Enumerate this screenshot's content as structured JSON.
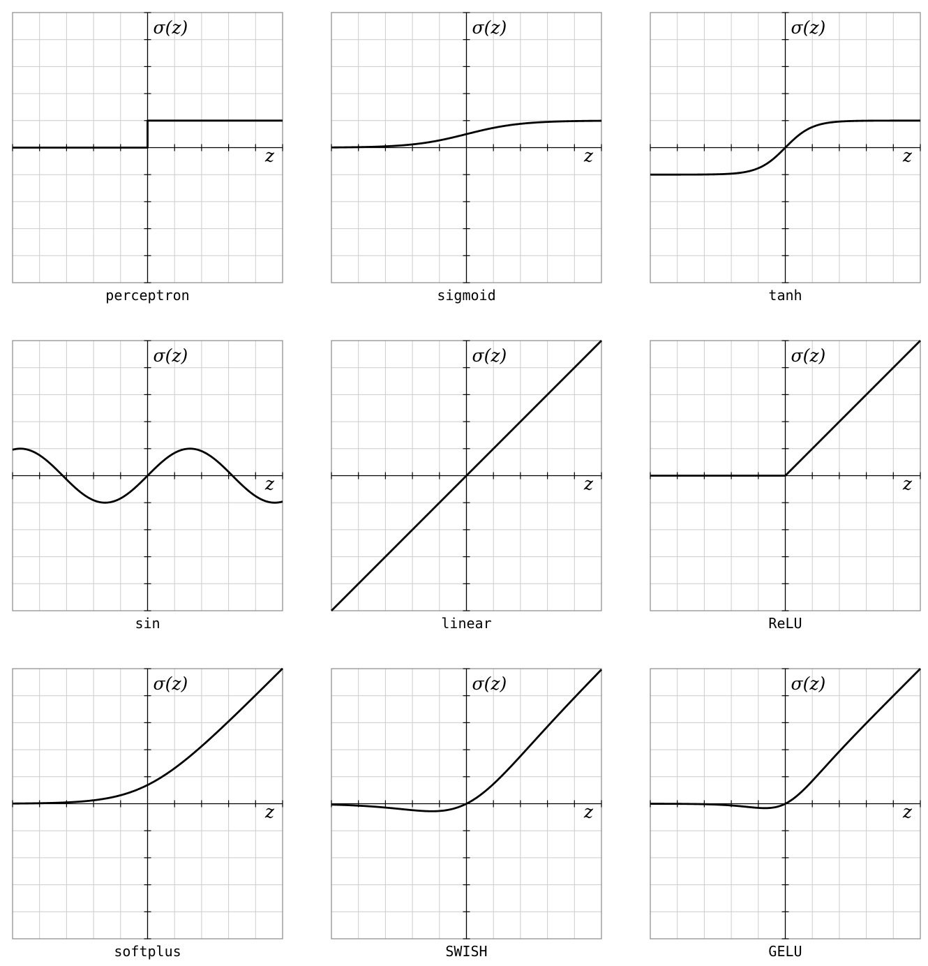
{
  "figure": {
    "x_axis_label": "z",
    "y_axis_label": "σ(z)",
    "colors": {
      "grid": "#cccccc",
      "frame": "#888888",
      "axis": "#000000",
      "curve": "#000000",
      "background": "#ffffff"
    }
  },
  "chart_data": [
    {
      "type": "line",
      "title": "perceptron",
      "function": "step",
      "xlabel": "z",
      "ylabel": "σ(z)",
      "xlim": [
        -5,
        5
      ],
      "ylim": [
        -5,
        5
      ],
      "grid": true,
      "x": [
        -5,
        -0.01,
        0,
        0.01,
        5
      ],
      "y": [
        0,
        0,
        0.5,
        1,
        1
      ]
    },
    {
      "type": "line",
      "title": "sigmoid",
      "function": "sigmoid",
      "xlabel": "z",
      "ylabel": "σ(z)",
      "xlim": [
        -5,
        5
      ],
      "ylim": [
        -5,
        5
      ],
      "grid": true,
      "x": [
        -5,
        -2.5,
        0,
        2.5,
        5
      ],
      "y": [
        0.007,
        0.076,
        0.5,
        0.924,
        0.993
      ]
    },
    {
      "type": "line",
      "title": "tanh",
      "function": "tanh",
      "xlabel": "z",
      "ylabel": "σ(z)",
      "xlim": [
        -5,
        5
      ],
      "ylim": [
        -5,
        5
      ],
      "grid": true,
      "x": [
        -5,
        -1,
        0,
        1,
        5
      ],
      "y": [
        -1,
        -0.762,
        0,
        0.762,
        1
      ]
    },
    {
      "type": "line",
      "title": "sin",
      "function": "sin",
      "xlabel": "z",
      "ylabel": "σ(z)",
      "xlim": [
        -5,
        5
      ],
      "ylim": [
        -5,
        5
      ],
      "grid": true,
      "x": [
        -5,
        -1.571,
        0,
        1.571,
        5
      ],
      "y": [
        0.959,
        -1,
        0,
        1,
        -0.959
      ]
    },
    {
      "type": "line",
      "title": "linear",
      "function": "linear",
      "xlabel": "z",
      "ylabel": "σ(z)",
      "xlim": [
        -5,
        5
      ],
      "ylim": [
        -5,
        5
      ],
      "grid": true,
      "x": [
        -5,
        0,
        5
      ],
      "y": [
        -5,
        0,
        5
      ]
    },
    {
      "type": "line",
      "title": "ReLU",
      "function": "relu",
      "xlabel": "z",
      "ylabel": "σ(z)",
      "xlim": [
        -5,
        5
      ],
      "ylim": [
        -5,
        5
      ],
      "grid": true,
      "x": [
        -5,
        0,
        5
      ],
      "y": [
        0,
        0,
        5
      ]
    },
    {
      "type": "line",
      "title": "softplus",
      "function": "softplus",
      "xlabel": "z",
      "ylabel": "σ(z)",
      "xlim": [
        -5,
        5
      ],
      "ylim": [
        -5,
        5
      ],
      "grid": true,
      "x": [
        -5,
        -2,
        0,
        2,
        5
      ],
      "y": [
        0.007,
        0.127,
        0.693,
        2.127,
        5.007
      ]
    },
    {
      "type": "line",
      "title": "SWISH",
      "function": "swish",
      "xlabel": "z",
      "ylabel": "σ(z)",
      "xlim": [
        -5,
        5
      ],
      "ylim": [
        -5,
        5
      ],
      "grid": true,
      "x": [
        -5,
        -1.278,
        0,
        2,
        5
      ],
      "y": [
        -0.033,
        -0.278,
        0,
        1.762,
        4.967
      ]
    },
    {
      "type": "line",
      "title": "GELU",
      "function": "gelu",
      "xlabel": "z",
      "ylabel": "σ(z)",
      "xlim": [
        -5,
        5
      ],
      "ylim": [
        -5,
        5
      ],
      "grid": true,
      "x": [
        -5,
        -0.75,
        0,
        2,
        5
      ],
      "y": [
        0,
        -0.17,
        0,
        1.954,
        5
      ]
    }
  ]
}
